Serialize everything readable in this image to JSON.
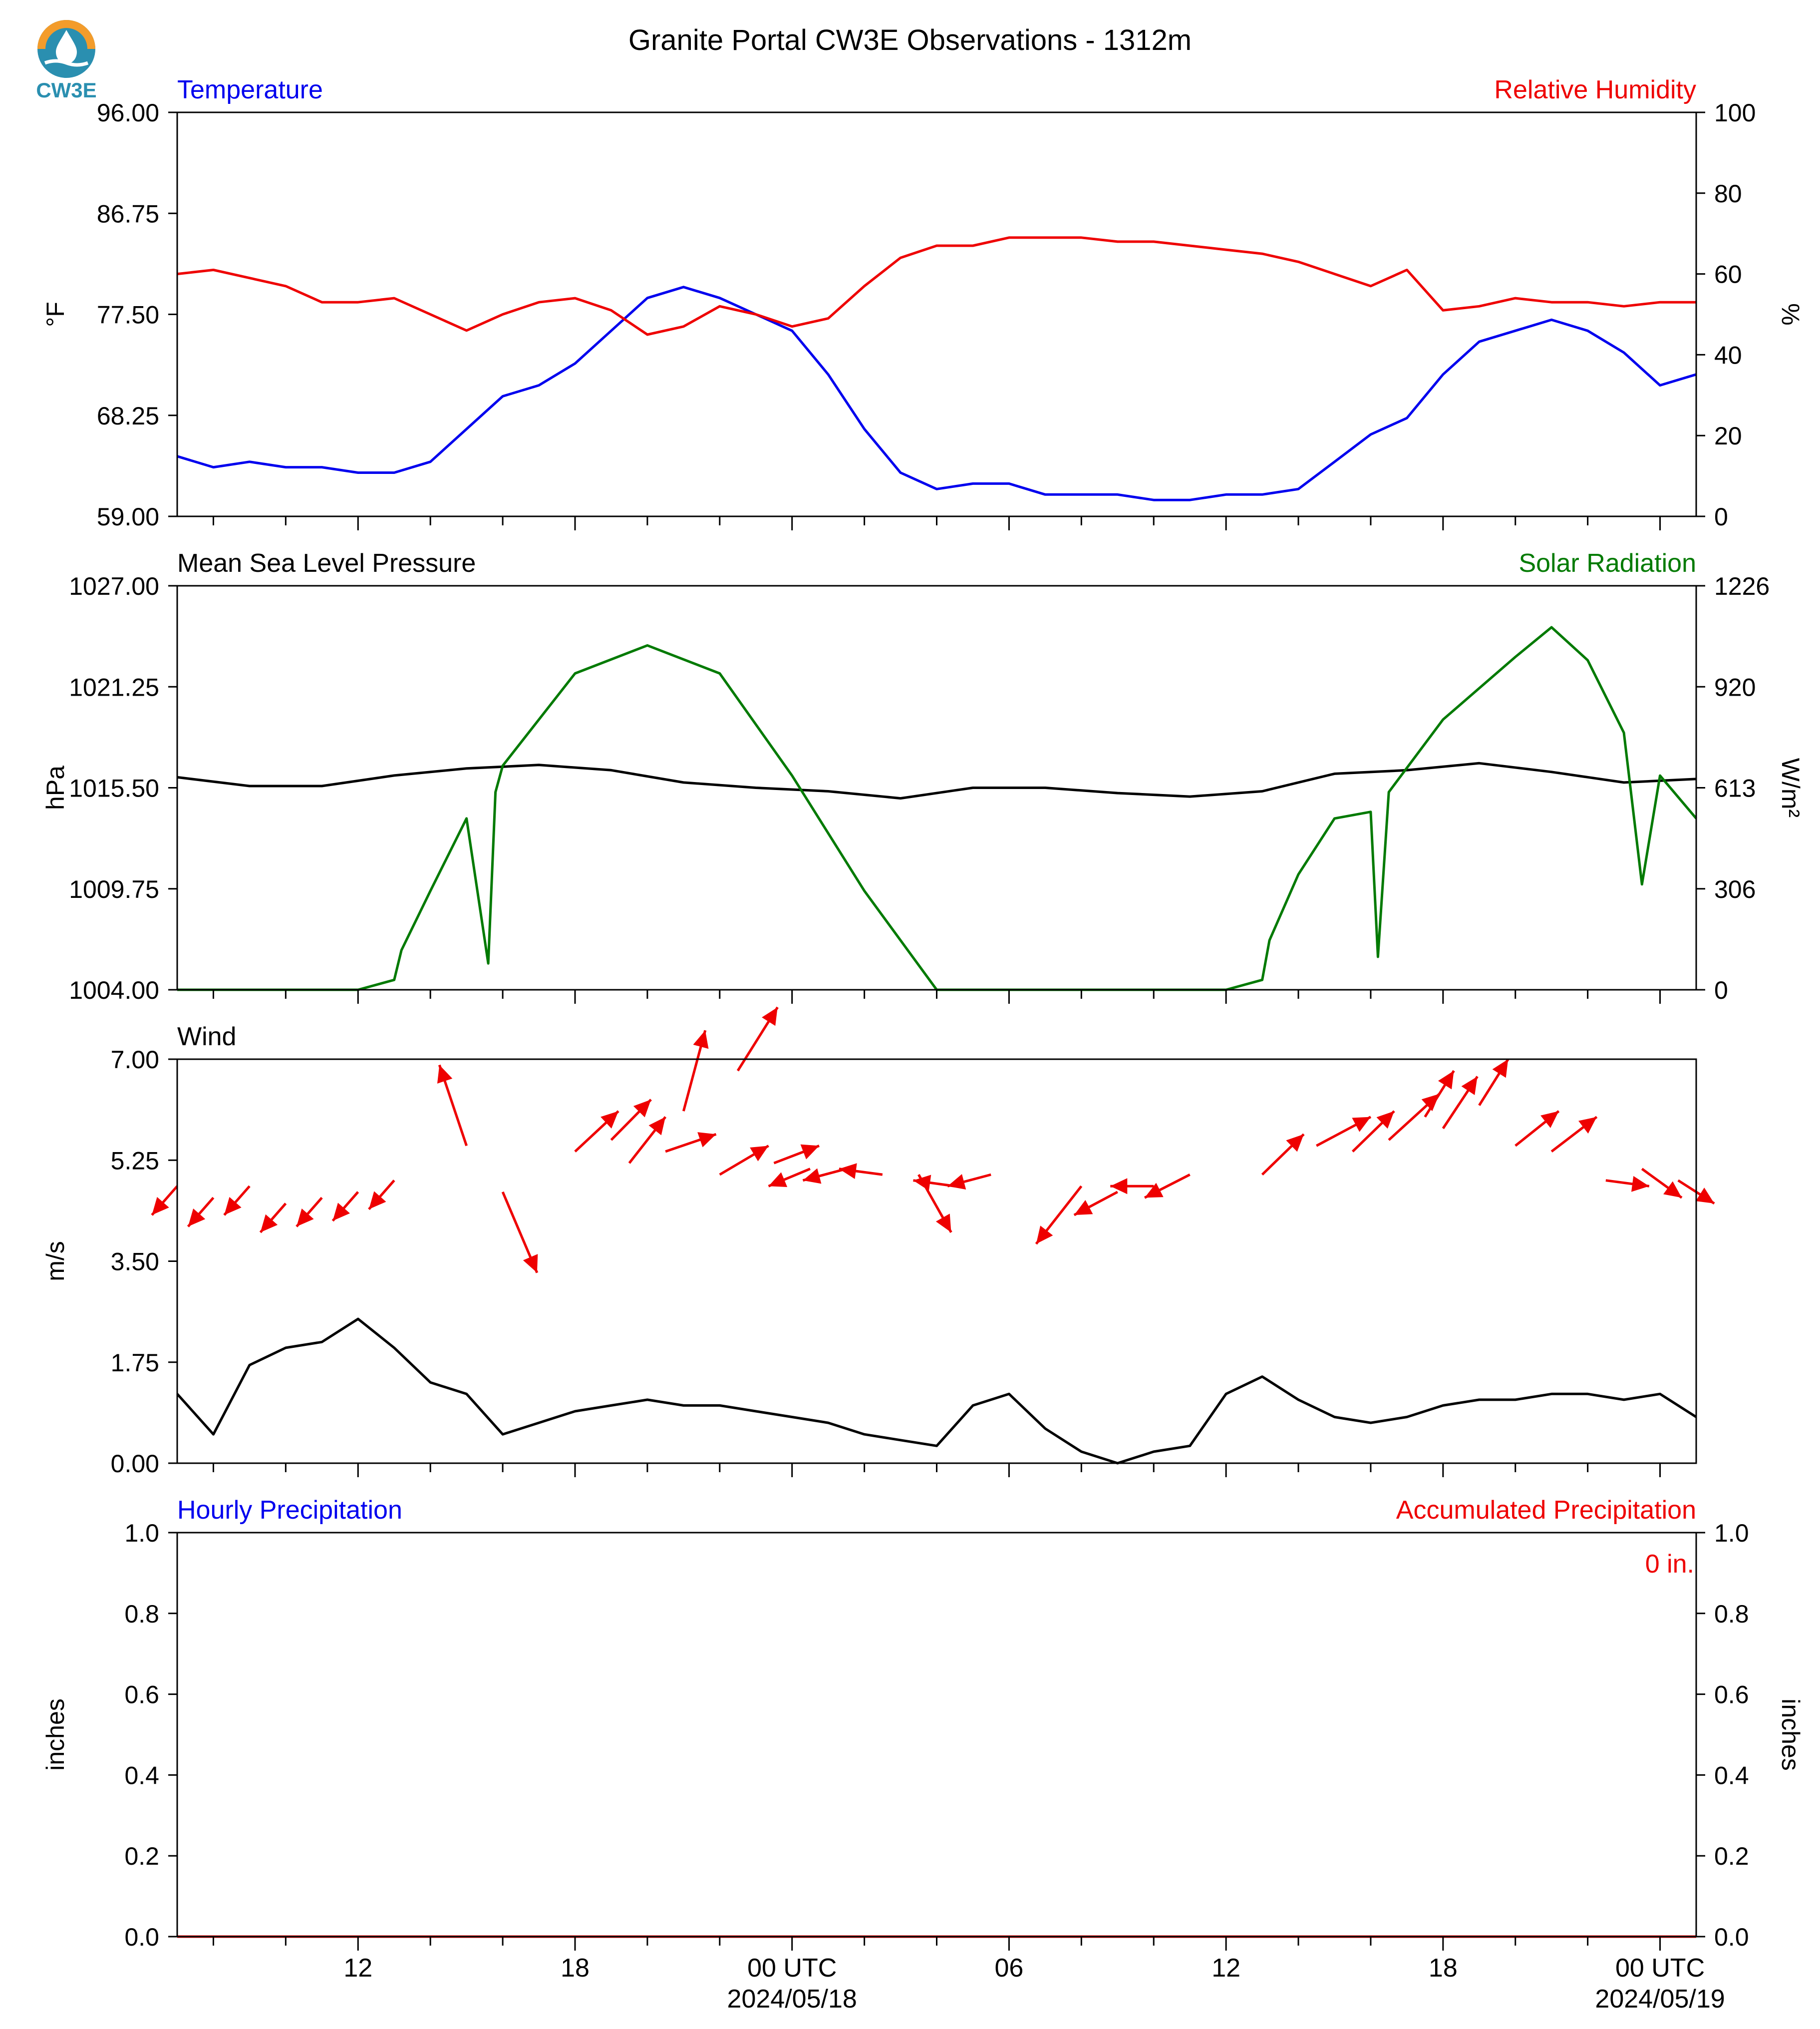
{
  "title": "Granite Portal CW3E Observations - 1312m",
  "logo_text": "CW3E",
  "colors": {
    "blue": "#0000ee",
    "red": "#ee0000",
    "green": "#007a00",
    "black": "#000000"
  },
  "x_axis": {
    "major_labels": [
      {
        "t": 12,
        "label": "12",
        "sublabel": ""
      },
      {
        "t": 18,
        "label": "18",
        "sublabel": ""
      },
      {
        "t": 24,
        "label": "00 UTC",
        "sublabel": "2024/05/18"
      },
      {
        "t": 30,
        "label": "06",
        "sublabel": ""
      },
      {
        "t": 36,
        "label": "12",
        "sublabel": ""
      },
      {
        "t": 42,
        "label": "18",
        "sublabel": ""
      },
      {
        "t": 48,
        "label": "00 UTC",
        "sublabel": "2024/05/19"
      }
    ],
    "range_hours_since_0517_00utc": [
      7,
      49
    ]
  },
  "panels": [
    {
      "id": "temp-rh",
      "left_title": "Temperature",
      "left_title_color": "#0000ee",
      "right_title": "Relative Humidity",
      "right_title_color": "#ee0000",
      "left_unit": "°F",
      "right_unit": "%",
      "left_ticks": [
        "96.00",
        "86.75",
        "77.50",
        "68.25",
        "59.00"
      ],
      "right_ticks": [
        "100",
        "80",
        "60",
        "40",
        "20",
        "0"
      ],
      "left_range": [
        59,
        96
      ],
      "right_range": [
        0,
        100
      ]
    },
    {
      "id": "pressure-solar",
      "left_title": "Mean Sea Level Pressure",
      "left_title_color": "#000000",
      "right_title": "Solar Radiation",
      "right_title_color": "#007a00",
      "left_unit": "hPa",
      "right_unit": "W/m²",
      "left_ticks": [
        "1027.00",
        "1021.25",
        "1015.50",
        "1009.75",
        "1004.00"
      ],
      "right_ticks": [
        "1226",
        "920",
        "613",
        "306",
        "0"
      ],
      "left_range": [
        1004,
        1027
      ],
      "right_range": [
        0,
        1226
      ]
    },
    {
      "id": "wind",
      "left_title": "Wind",
      "left_title_color": "#000000",
      "right_title": "",
      "right_title_color": "#000000",
      "left_unit": "m/s",
      "right_unit": "",
      "left_ticks": [
        "7.00",
        "5.25",
        "3.50",
        "1.75",
        "0.00"
      ],
      "right_ticks": [],
      "left_range": [
        0,
        7
      ],
      "right_range": null
    },
    {
      "id": "precip",
      "left_title": "Hourly Precipitation",
      "left_title_color": "#0000ee",
      "right_title": "Accumulated Precipitation",
      "right_title_color": "#ee0000",
      "left_unit": "inches",
      "right_unit": "inches",
      "left_ticks": [
        "1.0",
        "0.8",
        "0.6",
        "0.4",
        "0.2",
        "0.0"
      ],
      "right_ticks": [
        "1.0",
        "0.8",
        "0.6",
        "0.4",
        "0.2",
        "0.0"
      ],
      "left_range": [
        0,
        1
      ],
      "right_range": [
        0,
        1
      ],
      "annotation": "0 in."
    }
  ],
  "chart_data": [
    {
      "type": "line",
      "title": "",
      "xlabel": "",
      "ylabel": "°F",
      "x_unit": "hours since 2024/05/17 00 UTC",
      "series": [
        {
          "name": "Temperature",
          "axis": "left",
          "color": "#0000ee",
          "x": [
            7,
            8,
            9,
            10,
            11,
            12,
            13,
            14,
            15,
            16,
            17,
            18,
            19,
            20,
            21,
            22,
            23,
            24,
            25,
            26,
            27,
            28,
            29,
            30,
            31,
            32,
            33,
            34,
            35,
            36,
            37,
            38,
            39,
            40,
            41,
            42,
            43,
            44,
            45,
            46,
            47,
            48,
            49
          ],
          "y": [
            64.5,
            63.5,
            64,
            63.5,
            63.5,
            63,
            63,
            64,
            67,
            70,
            71,
            73,
            76,
            79,
            80,
            79,
            77.5,
            76,
            72,
            67,
            63,
            61.5,
            62,
            62,
            61,
            61,
            61,
            60.5,
            60.5,
            61,
            61,
            61.5,
            64,
            66.5,
            68,
            72,
            75,
            76,
            77,
            76,
            74,
            71,
            72
          ]
        },
        {
          "name": "Relative Humidity",
          "axis": "right",
          "color": "#ee0000",
          "x": [
            7,
            8,
            9,
            10,
            11,
            12,
            13,
            14,
            15,
            16,
            17,
            18,
            19,
            20,
            21,
            22,
            23,
            24,
            25,
            26,
            27,
            28,
            29,
            30,
            31,
            32,
            33,
            34,
            35,
            36,
            37,
            38,
            39,
            40,
            41,
            42,
            43,
            44,
            45,
            46,
            47,
            48,
            49
          ],
          "y": [
            60,
            61,
            59,
            57,
            53,
            53,
            54,
            50,
            46,
            50,
            53,
            54,
            51,
            45,
            47,
            52,
            50,
            47,
            49,
            57,
            64,
            67,
            67,
            69,
            69,
            69,
            68,
            68,
            67,
            66,
            65,
            63,
            60,
            57,
            61,
            51,
            52,
            54,
            53,
            53,
            52,
            53,
            53
          ]
        }
      ],
      "ylim_left": [
        59,
        96
      ],
      "ylim_right": [
        0,
        100
      ]
    },
    {
      "type": "line",
      "title": "",
      "xlabel": "",
      "ylabel": "hPa",
      "x_unit": "hours since 2024/05/17 00 UTC",
      "series": [
        {
          "name": "Mean Sea Level Pressure",
          "axis": "left",
          "color": "#000000",
          "x": [
            7,
            9,
            11,
            13,
            15,
            17,
            19,
            21,
            23,
            25,
            27,
            29,
            31,
            33,
            35,
            37,
            39,
            41,
            43,
            45,
            47,
            49
          ],
          "y": [
            1016.1,
            1015.6,
            1015.6,
            1016.2,
            1016.6,
            1016.8,
            1016.5,
            1015.8,
            1015.5,
            1015.3,
            1014.9,
            1015.5,
            1015.5,
            1015.2,
            1015.0,
            1015.3,
            1016.3,
            1016.5,
            1016.9,
            1016.4,
            1015.8,
            1016.0
          ]
        },
        {
          "name": "Solar Radiation",
          "axis": "right",
          "color": "#007a00",
          "x": [
            7,
            12,
            13,
            13.2,
            14,
            15,
            15.6,
            15.8,
            16,
            18,
            20,
            22,
            24,
            26,
            28,
            29,
            36,
            37,
            37.2,
            38,
            39,
            40,
            40.2,
            40.5,
            42,
            44,
            45,
            46,
            47,
            47.5,
            48,
            49
          ],
          "y": [
            0,
            0,
            30,
            120,
            300,
            520,
            80,
            600,
            680,
            960,
            1045,
            960,
            650,
            300,
            0,
            0,
            0,
            30,
            150,
            350,
            520,
            540,
            100,
            600,
            820,
            1010,
            1100,
            1000,
            780,
            320,
            650,
            520
          ]
        }
      ],
      "ylim_left": [
        1004,
        1027
      ],
      "ylim_right": [
        0,
        1226
      ]
    },
    {
      "type": "line",
      "title": "",
      "xlabel": "",
      "ylabel": "m/s",
      "x_unit": "hours since 2024/05/17 00 UTC",
      "series": [
        {
          "name": "Wind Speed",
          "axis": "left",
          "color": "#000000",
          "x": [
            7,
            8,
            9,
            10,
            11,
            12,
            13,
            14,
            15,
            16,
            17,
            18,
            19,
            20,
            21,
            22,
            23,
            24,
            25,
            26,
            27,
            28,
            29,
            30,
            31,
            32,
            33,
            34,
            35,
            36,
            37,
            38,
            39,
            40,
            41,
            42,
            43,
            44,
            45,
            46,
            47,
            48,
            49
          ],
          "y": [
            1.2,
            0.5,
            1.7,
            2.0,
            2.1,
            2.5,
            2.0,
            1.4,
            1.2,
            0.5,
            0.7,
            0.9,
            1.0,
            1.1,
            1.0,
            1.0,
            0.9,
            0.8,
            0.7,
            0.5,
            0.4,
            0.3,
            1.0,
            1.2,
            0.6,
            0.2,
            0,
            0.2,
            0.3,
            1.2,
            1.5,
            1.1,
            0.8,
            0.7,
            0.8,
            1.0,
            1.1,
            1.1,
            1.2,
            1.2,
            1.1,
            1.2,
            0.8
          ]
        },
        {
          "name": "Wind Direction (arrows)",
          "axis": "left",
          "color": "#ee0000",
          "x": [
            7,
            8,
            9,
            10,
            11,
            12,
            13,
            15,
            16,
            18,
            19,
            19.5,
            20.5,
            21,
            22,
            22.5,
            23.5,
            24.5,
            25.5,
            26.5,
            27.5,
            28.5,
            29.5,
            32,
            33,
            34,
            35,
            37,
            38.5,
            39.5,
            40.5,
            41.5,
            42,
            43,
            44,
            45,
            46.5,
            47.5,
            48.5
          ],
          "y": [
            4.8,
            4.6,
            4.8,
            4.5,
            4.6,
            4.7,
            4.9,
            5.5,
            4.7,
            5.4,
            5.6,
            5.2,
            5.4,
            6.1,
            5.0,
            6.8,
            5.2,
            5.1,
            5.1,
            5.0,
            5.0,
            4.8,
            5.0,
            4.8,
            4.7,
            4.8,
            5.0,
            5.0,
            5.5,
            5.4,
            5.6,
            6.0,
            5.8,
            6.2,
            5.5,
            5.4,
            4.9,
            5.1,
            4.9
          ],
          "dx": [
            -1.4,
            -1.4,
            -1.4,
            -1.4,
            -1.4,
            -1.4,
            -1.4,
            -1.5,
            1.9,
            2.4,
            2.2,
            2.0,
            2.8,
            1.2,
            2.7,
            2.2,
            2.5,
            -2.3,
            -2.4,
            -2.4,
            1.8,
            -2.3,
            -2.4,
            -2.5,
            -2.4,
            -2.4,
            -2.5,
            2.3,
            3.0,
            2.3,
            2.8,
            1.6,
            1.9,
            1.6,
            2.4,
            2.5,
            2.4,
            2.2,
            2.0
          ],
          "dy": [
            -0.5,
            -0.5,
            -0.5,
            -0.5,
            -0.5,
            -0.5,
            -0.5,
            1.4,
            -1.4,
            0.7,
            0.7,
            0.8,
            0.3,
            1.4,
            0.5,
            1.1,
            0.3,
            -0.3,
            -0.2,
            0.1,
            -1.0,
            0.1,
            -0.2,
            -1.0,
            -0.4,
            0.0,
            -0.4,
            0.7,
            0.5,
            0.7,
            0.8,
            0.8,
            0.9,
            0.8,
            0.6,
            0.6,
            -0.1,
            -0.5,
            -0.4
          ]
        }
      ],
      "ylim_left": [
        0,
        7
      ]
    },
    {
      "type": "line",
      "title": "",
      "xlabel": "",
      "ylabel": "inches",
      "x_unit": "hours since 2024/05/17 00 UTC",
      "series": [
        {
          "name": "Hourly Precipitation",
          "axis": "left",
          "color": "#0000ee",
          "x": [
            7,
            49
          ],
          "y": [
            0,
            0
          ]
        },
        {
          "name": "Accumulated Precipitation",
          "axis": "right",
          "color": "#ee0000",
          "x": [
            7,
            49
          ],
          "y": [
            0,
            0
          ]
        }
      ],
      "ylim_left": [
        0,
        1
      ],
      "ylim_right": [
        0,
        1
      ]
    }
  ]
}
